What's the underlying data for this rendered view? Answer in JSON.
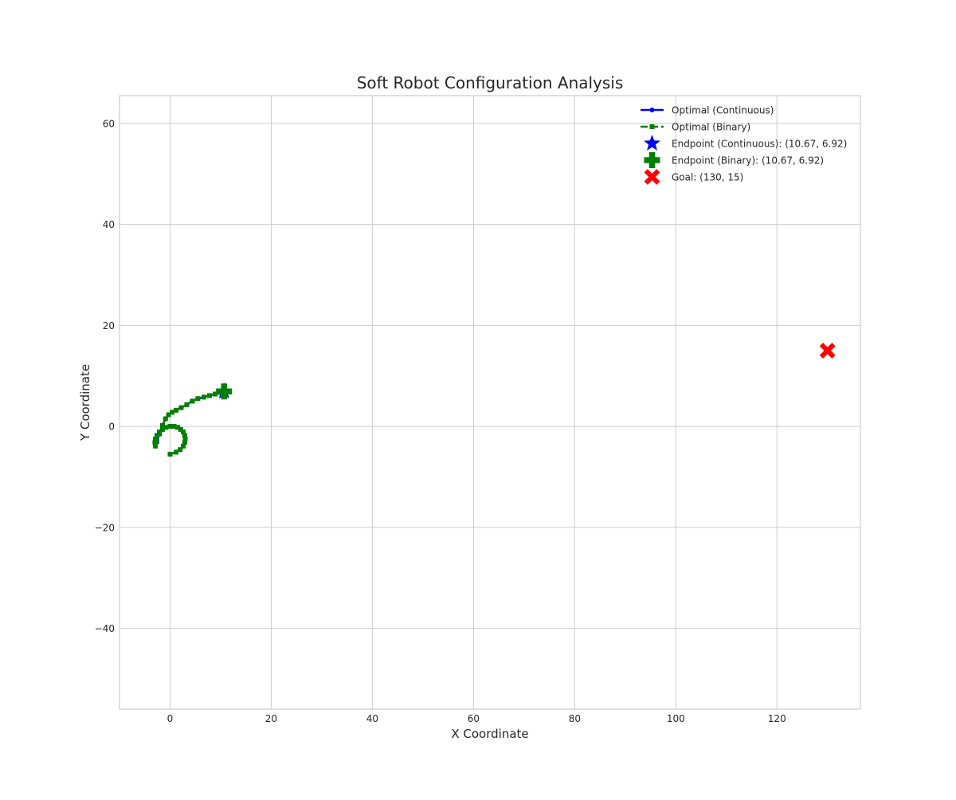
{
  "chart_data": {
    "type": "scatter",
    "title": "Soft Robot Configuration Analysis",
    "xlabel": "X Coordinate",
    "ylabel": "Y Coordinate",
    "xlim": [
      -10,
      136.5
    ],
    "ylim": [
      -56,
      65.5
    ],
    "xticks": [
      0,
      20,
      40,
      60,
      80,
      100,
      120
    ],
    "yticks": [
      -40,
      -20,
      0,
      20,
      40,
      60
    ],
    "xtick_labels": [
      "0",
      "20",
      "40",
      "60",
      "80",
      "100",
      "120"
    ],
    "ytick_labels": [
      "−40",
      "−20",
      "0",
      "20",
      "40",
      "60"
    ],
    "grid": true,
    "legend_position": "top-right",
    "series": [
      {
        "name": "Optimal (Continuous)",
        "kind": "line",
        "color": "#0000ff",
        "marker": "circle",
        "linestyle": "solid",
        "x": [
          0,
          1.2,
          2.0,
          2.6,
          2.9,
          3.0,
          2.9,
          2.6,
          2.1,
          1.5,
          0.8,
          0.0,
          -0.8,
          -1.5,
          -2.1,
          -2.6,
          -2.9,
          -3.0,
          -2.9,
          -2.6,
          -2.1,
          -1.5,
          -0.9,
          -0.3,
          0.4,
          1.2,
          2.2,
          3.3,
          4.4,
          5.5,
          6.7,
          7.8,
          8.9,
          9.9,
          10.67
        ],
        "y": [
          -5.5,
          -5.1,
          -4.6,
          -3.9,
          -3.2,
          -2.5,
          -1.8,
          -1.1,
          -0.6,
          -0.2,
          0.0,
          0.0,
          -0.2,
          -0.6,
          -1.1,
          -1.8,
          -2.5,
          -3.2,
          -3.9,
          -3.0,
          -1.5,
          0.2,
          1.5,
          2.3,
          2.8,
          3.2,
          3.7,
          4.3,
          5.0,
          5.5,
          5.8,
          6.1,
          6.4,
          6.7,
          6.92
        ]
      },
      {
        "name": "Optimal (Binary)",
        "kind": "line",
        "color": "#008000",
        "marker": "square",
        "linestyle": "dashed",
        "x": [
          0,
          1.2,
          2.0,
          2.6,
          2.9,
          3.0,
          2.9,
          2.6,
          2.1,
          1.5,
          0.8,
          0.0,
          -0.8,
          -1.5,
          -2.1,
          -2.6,
          -2.9,
          -3.0,
          -2.9,
          -2.6,
          -2.1,
          -1.5,
          -0.9,
          -0.3,
          0.4,
          1.2,
          2.2,
          3.3,
          4.4,
          5.5,
          6.7,
          7.8,
          8.9,
          9.9,
          10.67
        ],
        "y": [
          -5.5,
          -5.1,
          -4.6,
          -3.9,
          -3.2,
          -2.5,
          -1.8,
          -1.1,
          -0.6,
          -0.2,
          0.0,
          0.0,
          -0.2,
          -0.6,
          -1.1,
          -1.8,
          -2.5,
          -3.2,
          -3.9,
          -3.0,
          -1.5,
          0.2,
          1.5,
          2.3,
          2.8,
          3.2,
          3.7,
          4.3,
          5.0,
          5.5,
          5.8,
          6.1,
          6.4,
          6.7,
          6.92
        ]
      },
      {
        "name": "Endpoint (Continuous): (10.67, 6.92)",
        "kind": "point",
        "color": "#0000ff",
        "marker": "star",
        "x": [
          10.67
        ],
        "y": [
          6.92
        ]
      },
      {
        "name": "Endpoint (Binary): (10.67, 6.92)",
        "kind": "point",
        "color": "#008000",
        "marker": "plus",
        "x": [
          10.67
        ],
        "y": [
          6.92
        ]
      },
      {
        "name": "Goal: (130, 15)",
        "kind": "point",
        "color": "#ff0000",
        "marker": "x",
        "x": [
          130
        ],
        "y": [
          15
        ]
      }
    ]
  }
}
